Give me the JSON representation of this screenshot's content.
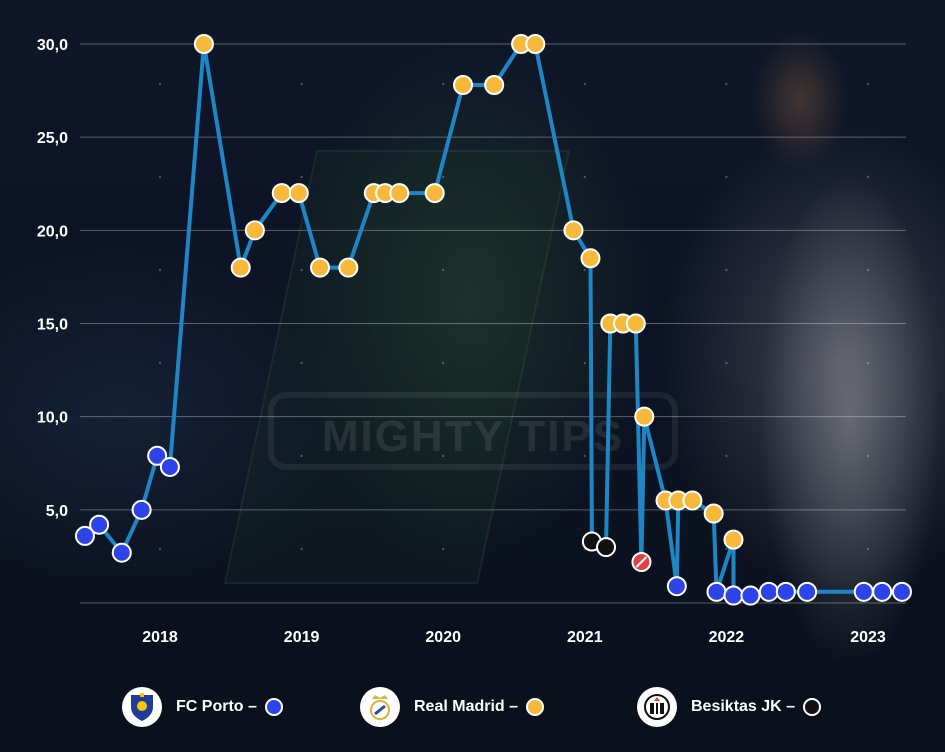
{
  "legend": [
    {
      "label": "FC Porto –",
      "dot_color": "#2f44e8",
      "logo_icon": "fc-porto-crest-icon"
    },
    {
      "label": "Real Madrid –",
      "dot_color": "#f6b93b",
      "logo_icon": "real-madrid-crest-icon"
    },
    {
      "label": "Besiktas JK –",
      "dot_color": "#111111",
      "logo_icon": "besiktas-crest-icon"
    }
  ],
  "chart_data": {
    "type": "line",
    "ylim": [
      0,
      30
    ],
    "yticks": [
      5,
      10,
      15,
      20,
      25,
      30
    ],
    "ytick_labels": [
      "5,0",
      "10,0",
      "15,0",
      "20,0",
      "25,0",
      "30,0"
    ],
    "xlim": [
      2017.45,
      2023.6
    ],
    "xticks": [
      2018,
      2019,
      2020,
      2021,
      2022,
      2023
    ],
    "xtick_labels": [
      "2018",
      "2019",
      "2020",
      "2021",
      "2022",
      "2023"
    ],
    "grid": true,
    "line_color": "#1f86c6",
    "series": [
      {
        "name": "FC Porto",
        "color": "#2f44e8",
        "points": [
          {
            "x": 2017.47,
            "y": 3.6
          },
          {
            "x": 2017.57,
            "y": 4.2
          },
          {
            "x": 2017.73,
            "y": 2.7
          },
          {
            "x": 2017.87,
            "y": 5.0
          },
          {
            "x": 2017.98,
            "y": 7.9
          },
          {
            "x": 2018.07,
            "y": 7.3
          }
        ]
      },
      {
        "name": "Real Madrid",
        "color": "#f6b93b",
        "points": [
          {
            "x": 2018.31,
            "y": 30.0
          },
          {
            "x": 2018.57,
            "y": 18.0
          },
          {
            "x": 2018.67,
            "y": 20.0
          },
          {
            "x": 2018.86,
            "y": 22.0
          },
          {
            "x": 2018.98,
            "y": 22.0
          },
          {
            "x": 2019.13,
            "y": 18.0
          },
          {
            "x": 2019.33,
            "y": 18.0
          },
          {
            "x": 2019.51,
            "y": 22.0
          },
          {
            "x": 2019.59,
            "y": 22.0
          },
          {
            "x": 2019.69,
            "y": 22.0
          },
          {
            "x": 2019.94,
            "y": 22.0
          },
          {
            "x": 2020.14,
            "y": 27.8
          },
          {
            "x": 2020.36,
            "y": 27.8
          },
          {
            "x": 2020.55,
            "y": 30.0
          },
          {
            "x": 2020.65,
            "y": 30.0
          },
          {
            "x": 2020.92,
            "y": 20.0
          },
          {
            "x": 2021.04,
            "y": 18.5
          },
          {
            "x": 2021.18,
            "y": 15.0
          },
          {
            "x": 2021.27,
            "y": 15.0
          },
          {
            "x": 2021.36,
            "y": 15.0
          },
          {
            "x": 2021.42,
            "y": 10.0
          },
          {
            "x": 2021.57,
            "y": 5.5
          },
          {
            "x": 2021.66,
            "y": 5.5
          },
          {
            "x": 2021.76,
            "y": 5.5
          },
          {
            "x": 2021.91,
            "y": 4.8
          },
          {
            "x": 2022.05,
            "y": 3.4
          }
        ]
      },
      {
        "name": "Besiktas JK",
        "color": "#111111",
        "points": [
          {
            "x": 2021.05,
            "y": 3.3
          },
          {
            "x": 2021.15,
            "y": 3.0
          }
        ]
      },
      {
        "name": "FC Porto",
        "color": "#2f44e8",
        "points": [
          {
            "x": 2021.65,
            "y": 0.9
          },
          {
            "x": 2021.93,
            "y": 0.6
          },
          {
            "x": 2022.05,
            "y": 0.4
          },
          {
            "x": 2022.17,
            "y": 0.4
          },
          {
            "x": 2022.3,
            "y": 0.6
          },
          {
            "x": 2022.42,
            "y": 0.6
          },
          {
            "x": 2022.57,
            "y": 0.6
          },
          {
            "x": 2022.97,
            "y": 0.6
          },
          {
            "x": 2023.1,
            "y": 0.6
          },
          {
            "x": 2023.24,
            "y": 0.6
          }
        ]
      }
    ],
    "transfer_marker": {
      "x": 2021.4,
      "y": 2.2,
      "color": "#e0404a"
    }
  }
}
